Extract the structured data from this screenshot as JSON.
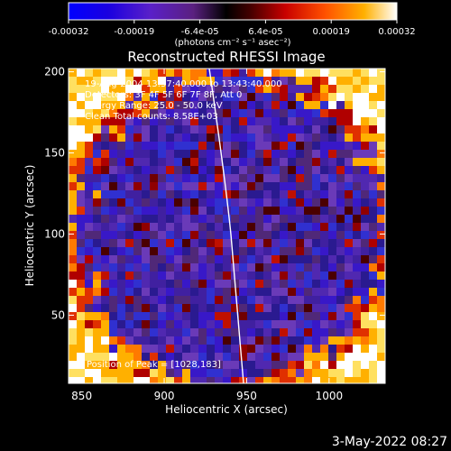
{
  "colorbar": {
    "tick_labels": [
      "-0.00032",
      "-0.00019",
      "-6.4e-05",
      "6.4e-05",
      "0.00019",
      "0.00032"
    ],
    "unit_label": "(photons cm⁻² s⁻¹ asec⁻²)"
  },
  "image": {
    "title": "Reconstructed RHESSI Image",
    "info_lines": [
      "19-Aug-2004 13:37:40.000 to 13:43:40.000",
      "Detectors: 3F 4F 5F 6F 7F 8F, Att 0",
      "Energy Range: 25.0 - 50.0 keV",
      "Clean    Total counts: 8.58E+03"
    ],
    "peak_label": "Position of Peak = [1028,183]"
  },
  "axes": {
    "xlabel": "Heliocentric X (arcsec)",
    "ylabel": "Heliocentric Y (arcsec)",
    "xticks": [
      850,
      900,
      950,
      1000
    ],
    "yticks": [
      50,
      100,
      150,
      200
    ],
    "xlim": [
      842,
      1034
    ],
    "ylim": [
      8,
      202
    ]
  },
  "timestamp": "3-May-2022 08:27",
  "colors": {
    "background": "#000000",
    "limb_line": "#ffffff"
  }
}
